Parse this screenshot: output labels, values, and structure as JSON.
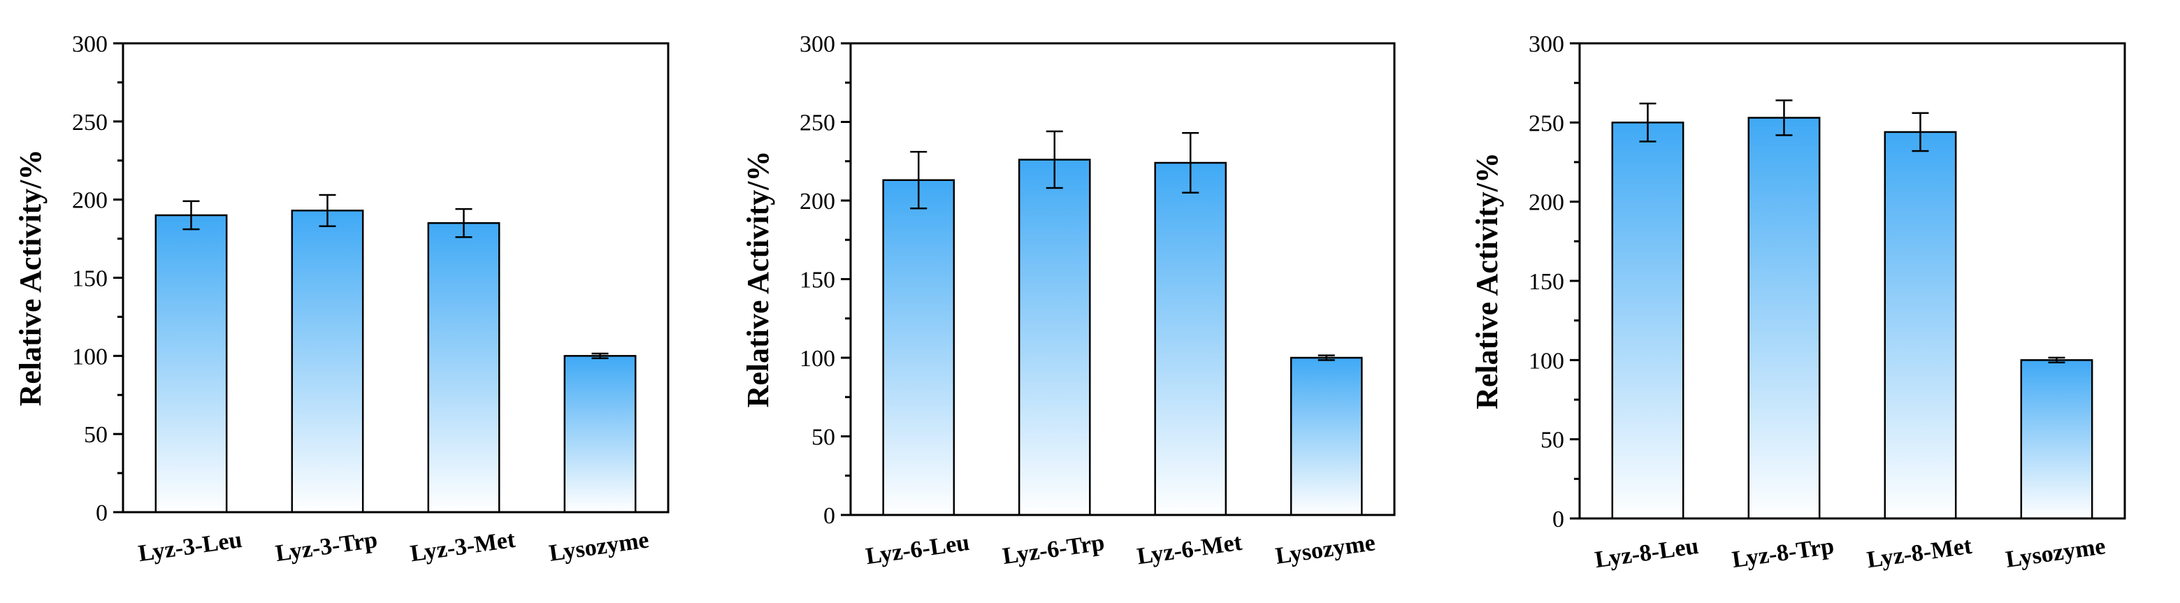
{
  "chart_data": [
    {
      "type": "bar",
      "ylabel": "Relative Activity/%",
      "ylim": [
        0,
        300
      ],
      "yticks": [
        0,
        50,
        100,
        150,
        200,
        250,
        300
      ],
      "categories": [
        "Lyz-3-Leu",
        "Lyz-3-Trp",
        "Lyz-3-Met",
        "Lysozyme"
      ],
      "values": [
        190,
        193,
        185,
        100
      ],
      "errors": [
        9,
        10,
        9,
        1.5
      ],
      "grid": false,
      "bar_color_top": "#3fa9f5",
      "bar_color_bottom": "#ffffff"
    },
    {
      "type": "bar",
      "ylabel": "Relative Activity/%",
      "ylim": [
        0,
        300
      ],
      "yticks": [
        0,
        50,
        100,
        150,
        200,
        250,
        300
      ],
      "categories": [
        "Lyz-6-Leu",
        "Lyz-6-Trp",
        "Lyz-6-Met",
        "Lysozyme"
      ],
      "values": [
        213,
        226,
        224,
        100
      ],
      "errors": [
        18,
        18,
        19,
        1.5
      ],
      "grid": false,
      "bar_color_top": "#3fa9f5",
      "bar_color_bottom": "#ffffff"
    },
    {
      "type": "bar",
      "ylabel": "Relative Activity/%",
      "ylim": [
        0,
        300
      ],
      "yticks": [
        0,
        50,
        100,
        150,
        200,
        250,
        300
      ],
      "categories": [
        "Lyz-8-Leu",
        "Lyz-8-Trp",
        "Lyz-8-Met",
        "Lysozyme"
      ],
      "values": [
        250,
        253,
        244,
        100
      ],
      "errors": [
        12,
        11,
        12,
        1.5
      ],
      "grid": false,
      "bar_color_top": "#3fa9f5",
      "bar_color_bottom": "#ffffff"
    }
  ]
}
